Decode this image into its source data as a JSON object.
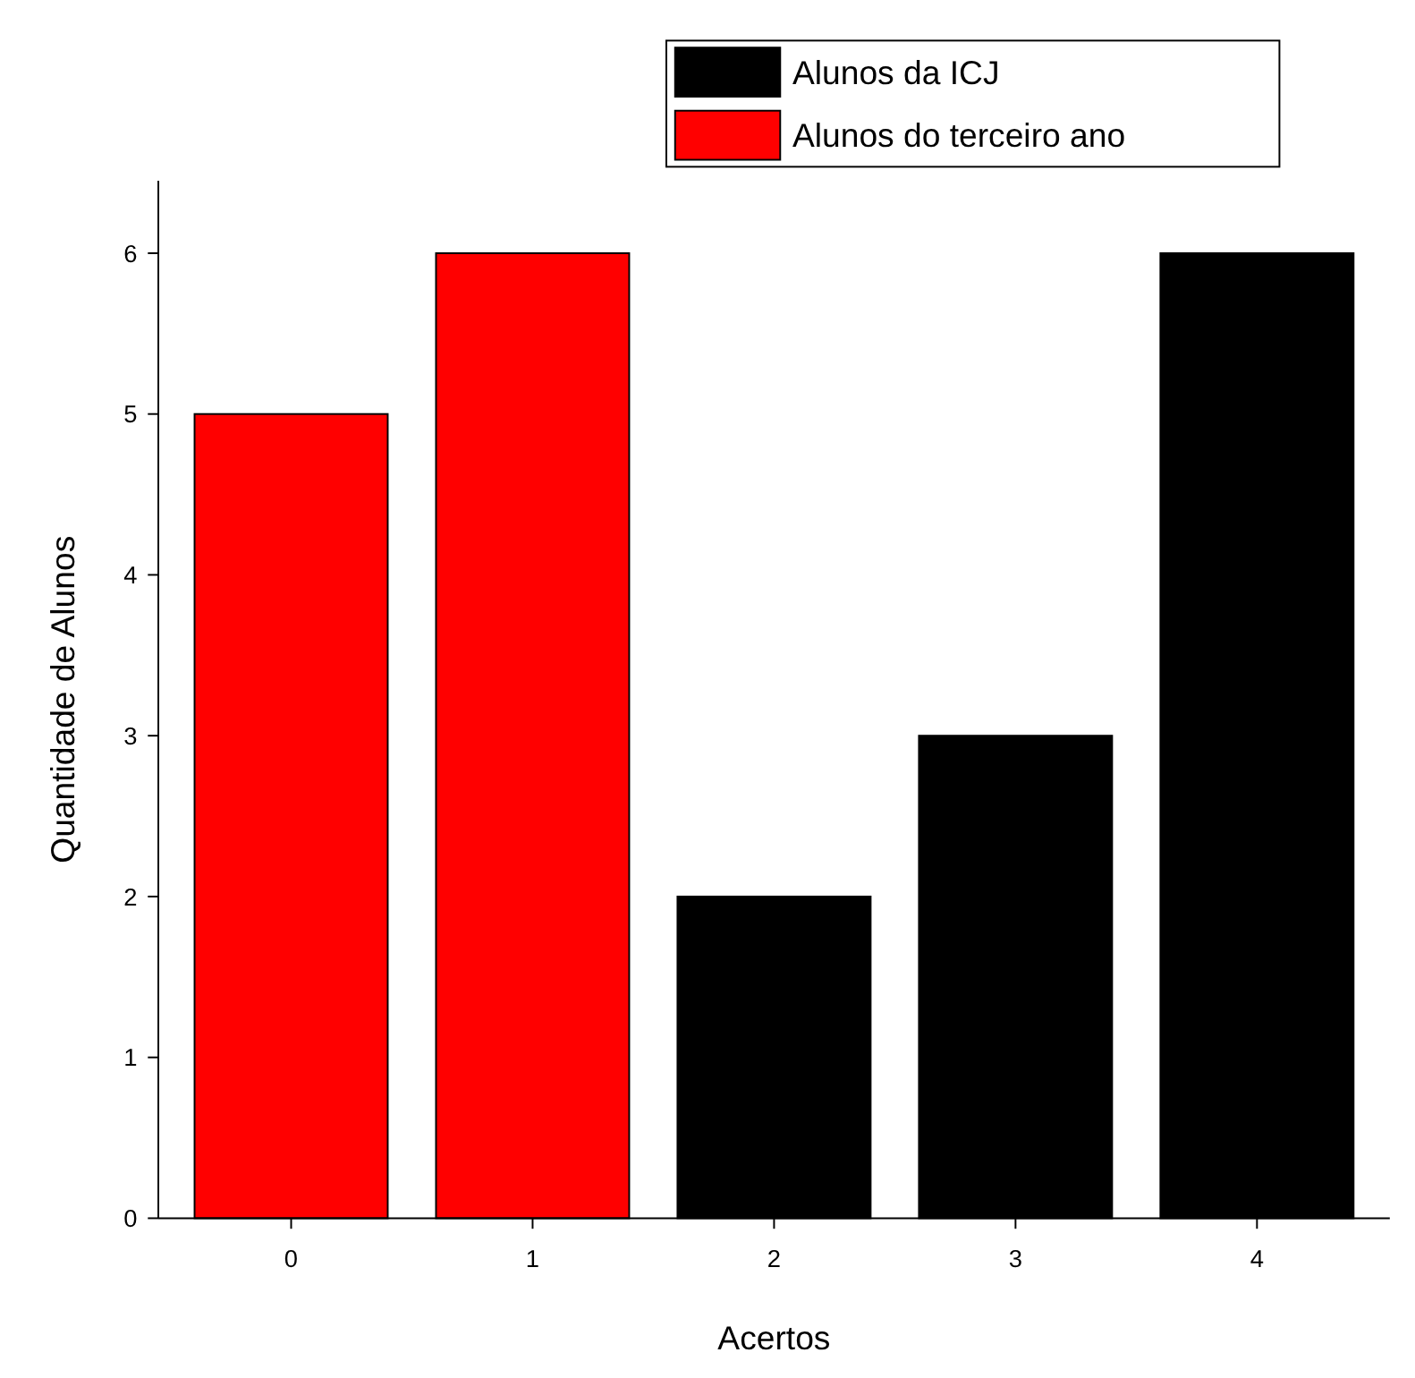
{
  "chart_data": {
    "type": "bar",
    "xlabel": "Acertos",
    "ylabel": "Quantidade de Alunos",
    "categories": [
      "0",
      "1",
      "2",
      "3",
      "4"
    ],
    "series": [
      {
        "name": "Alunos da ICJ",
        "color": "#000000",
        "values": [
          null,
          null,
          2,
          3,
          6
        ]
      },
      {
        "name": "Alunos do terceiro ano",
        "color": "#ff0000",
        "values": [
          5,
          6,
          null,
          null,
          null
        ]
      }
    ],
    "ylim": [
      0,
      6.45
    ],
    "yticks": [
      0,
      1,
      2,
      3,
      4,
      5,
      6
    ],
    "grid": false,
    "legend": "top right"
  }
}
